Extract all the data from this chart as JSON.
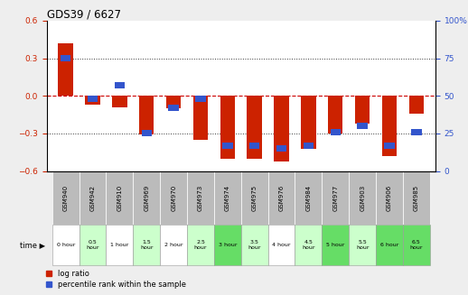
{
  "title": "GDS39 / 6627",
  "samples": [
    "GSM940",
    "GSM942",
    "GSM910",
    "GSM969",
    "GSM970",
    "GSM973",
    "GSM974",
    "GSM975",
    "GSM976",
    "GSM984",
    "GSM977",
    "GSM903",
    "GSM906",
    "GSM985"
  ],
  "time_labels": [
    "0 hour",
    "0.5\nhour",
    "1 hour",
    "1.5\nhour",
    "2 hour",
    "2.5\nhour",
    "3 hour",
    "3.5\nhour",
    "4 hour",
    "4.5\nhour",
    "5 hour",
    "5.5\nhour",
    "6 hour",
    "6.5\nhour"
  ],
  "log_ratio": [
    0.42,
    -0.07,
    -0.09,
    -0.31,
    -0.1,
    -0.35,
    -0.5,
    -0.5,
    -0.52,
    -0.42,
    -0.3,
    -0.22,
    -0.48,
    -0.14
  ],
  "percentile": [
    75,
    48,
    57,
    25,
    42,
    48,
    17,
    17,
    15,
    17,
    26,
    30,
    17,
    26
  ],
  "ylim_left": [
    -0.6,
    0.6
  ],
  "ylim_right": [
    0,
    100
  ],
  "yticks_left": [
    -0.6,
    -0.3,
    0.0,
    0.3,
    0.6
  ],
  "yticks_right": [
    0,
    25,
    50,
    75,
    100
  ],
  "bar_color_red": "#cc2200",
  "bar_color_blue": "#3355cc",
  "zero_line_color": "#cc0000",
  "bg_chart": "#ffffff",
  "bg_sample_row": "#bbbbbb",
  "time_row_colors": [
    "#ffffff",
    "#ccffcc",
    "#ffffff",
    "#ccffcc",
    "#ffffff",
    "#ccffcc",
    "#66dd66",
    "#ccffcc",
    "#ffffff",
    "#ccffcc",
    "#66dd66",
    "#ccffcc",
    "#66dd66",
    "#66dd66"
  ]
}
